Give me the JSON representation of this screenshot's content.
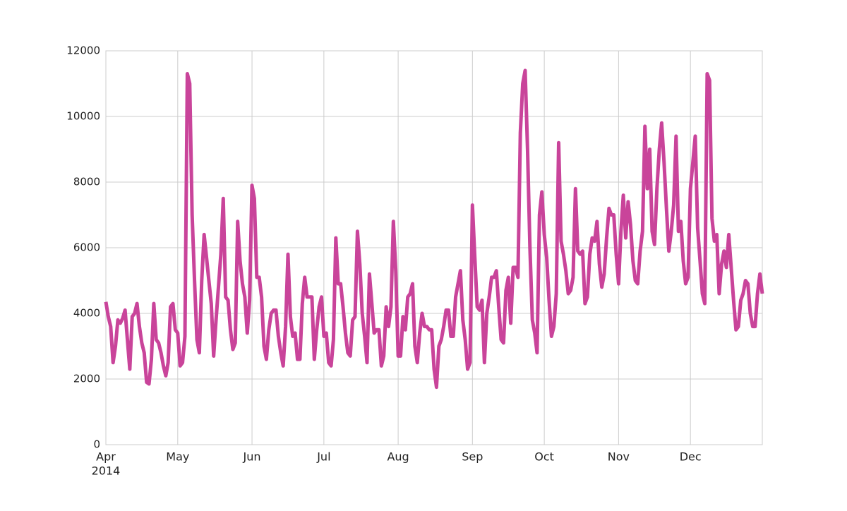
{
  "chart_data": {
    "type": "line",
    "xlim": [
      "2014-04-01",
      "2014-12-31"
    ],
    "xticks": [
      {
        "value": "2014-04",
        "label": "Apr"
      },
      {
        "value": "2014-05",
        "label": "May"
      },
      {
        "value": "2014-06",
        "label": "Jun"
      },
      {
        "value": "2014-07",
        "label": "Jul"
      },
      {
        "value": "2014-08",
        "label": "Aug"
      },
      {
        "value": "2014-09",
        "label": "Sep"
      },
      {
        "value": "2014-10",
        "label": "Oct"
      },
      {
        "value": "2014-11",
        "label": "Nov"
      },
      {
        "value": "2014-12",
        "label": "Dec"
      }
    ],
    "xtick_sublabel": "2014",
    "ylim": [
      0,
      12000
    ],
    "yticks": [
      0,
      2000,
      4000,
      6000,
      8000,
      10000,
      12000
    ],
    "grid": true,
    "series": [
      {
        "color": "#c9449a",
        "values": [
          4350,
          3900,
          3600,
          2500,
          3000,
          3800,
          3700,
          3850,
          4100,
          3200,
          2300,
          3900,
          4000,
          4300,
          3600,
          3100,
          2800,
          1900,
          1850,
          2600,
          4300,
          3200,
          3100,
          2800,
          2400,
          2100,
          2500,
          4200,
          4300,
          3500,
          3400,
          2400,
          2500,
          3300,
          11300,
          11000,
          7000,
          5000,
          3200,
          2800,
          5000,
          6400,
          5700,
          5000,
          4300,
          2700,
          3800,
          4800,
          5800,
          7500,
          4500,
          4400,
          3500,
          2900,
          3100,
          6800,
          5600,
          4900,
          4500,
          3400,
          4400,
          7900,
          7500,
          5100,
          5100,
          4500,
          3000,
          2600,
          3500,
          4000,
          4100,
          4100,
          3300,
          2800,
          2400,
          3600,
          5800,
          3900,
          3300,
          3400,
          2600,
          2600,
          4300,
          5100,
          4500,
          4500,
          4500,
          2600,
          3500,
          4200,
          4500,
          3300,
          3400,
          2500,
          2400,
          3200,
          6300,
          4900,
          4900,
          4200,
          3400,
          2800,
          2700,
          3800,
          3900,
          6500,
          5500,
          4000,
          3300,
          2500,
          5200,
          4300,
          3400,
          3500,
          3500,
          2400,
          2700,
          4200,
          3600,
          4200,
          6800,
          5300,
          2700,
          2700,
          3900,
          3500,
          4500,
          4600,
          4900,
          3000,
          2500,
          3400,
          4000,
          3600,
          3600,
          3500,
          3500,
          2300,
          1750,
          3000,
          3200,
          3600,
          4100,
          4100,
          3300,
          3300,
          4500,
          4900,
          5300,
          3800,
          3200,
          2300,
          2500,
          7300,
          5700,
          4200,
          4100,
          4400,
          2500,
          4000,
          4500,
          5100,
          5100,
          5300,
          4200,
          3200,
          3100,
          4700,
          5100,
          3700,
          5400,
          5400,
          5100,
          9500,
          11000,
          11400,
          9000,
          6000,
          3800,
          3400,
          2800,
          7000,
          7700,
          6400,
          5700,
          4400,
          3300,
          3600,
          4600,
          9200,
          6200,
          5800,
          5300,
          4600,
          4700,
          5100,
          7800,
          5900,
          5800,
          5900,
          4300,
          4500,
          5800,
          6300,
          6200,
          6800,
          5500,
          4800,
          5200,
          6300,
          7200,
          7000,
          7000,
          5800,
          4900,
          6500,
          7600,
          6300,
          7400,
          6700,
          5600,
          5000,
          4900,
          5900,
          6500,
          9700,
          7800,
          9000,
          6500,
          6100,
          7800,
          9000,
          9800,
          8600,
          7200,
          5900,
          6500,
          7300,
          9400,
          6500,
          6800,
          5600,
          4900,
          5100,
          7800,
          8600,
          9400,
          6600,
          5600,
          4600,
          4300,
          11300,
          11100,
          6900,
          6200,
          6400,
          4600,
          5500,
          5900,
          5400,
          6400,
          5400,
          4400,
          3500,
          3600,
          4400,
          4600,
          5000,
          4900,
          4000,
          3600,
          3600,
          4600,
          5200,
          4600
        ]
      }
    ]
  }
}
